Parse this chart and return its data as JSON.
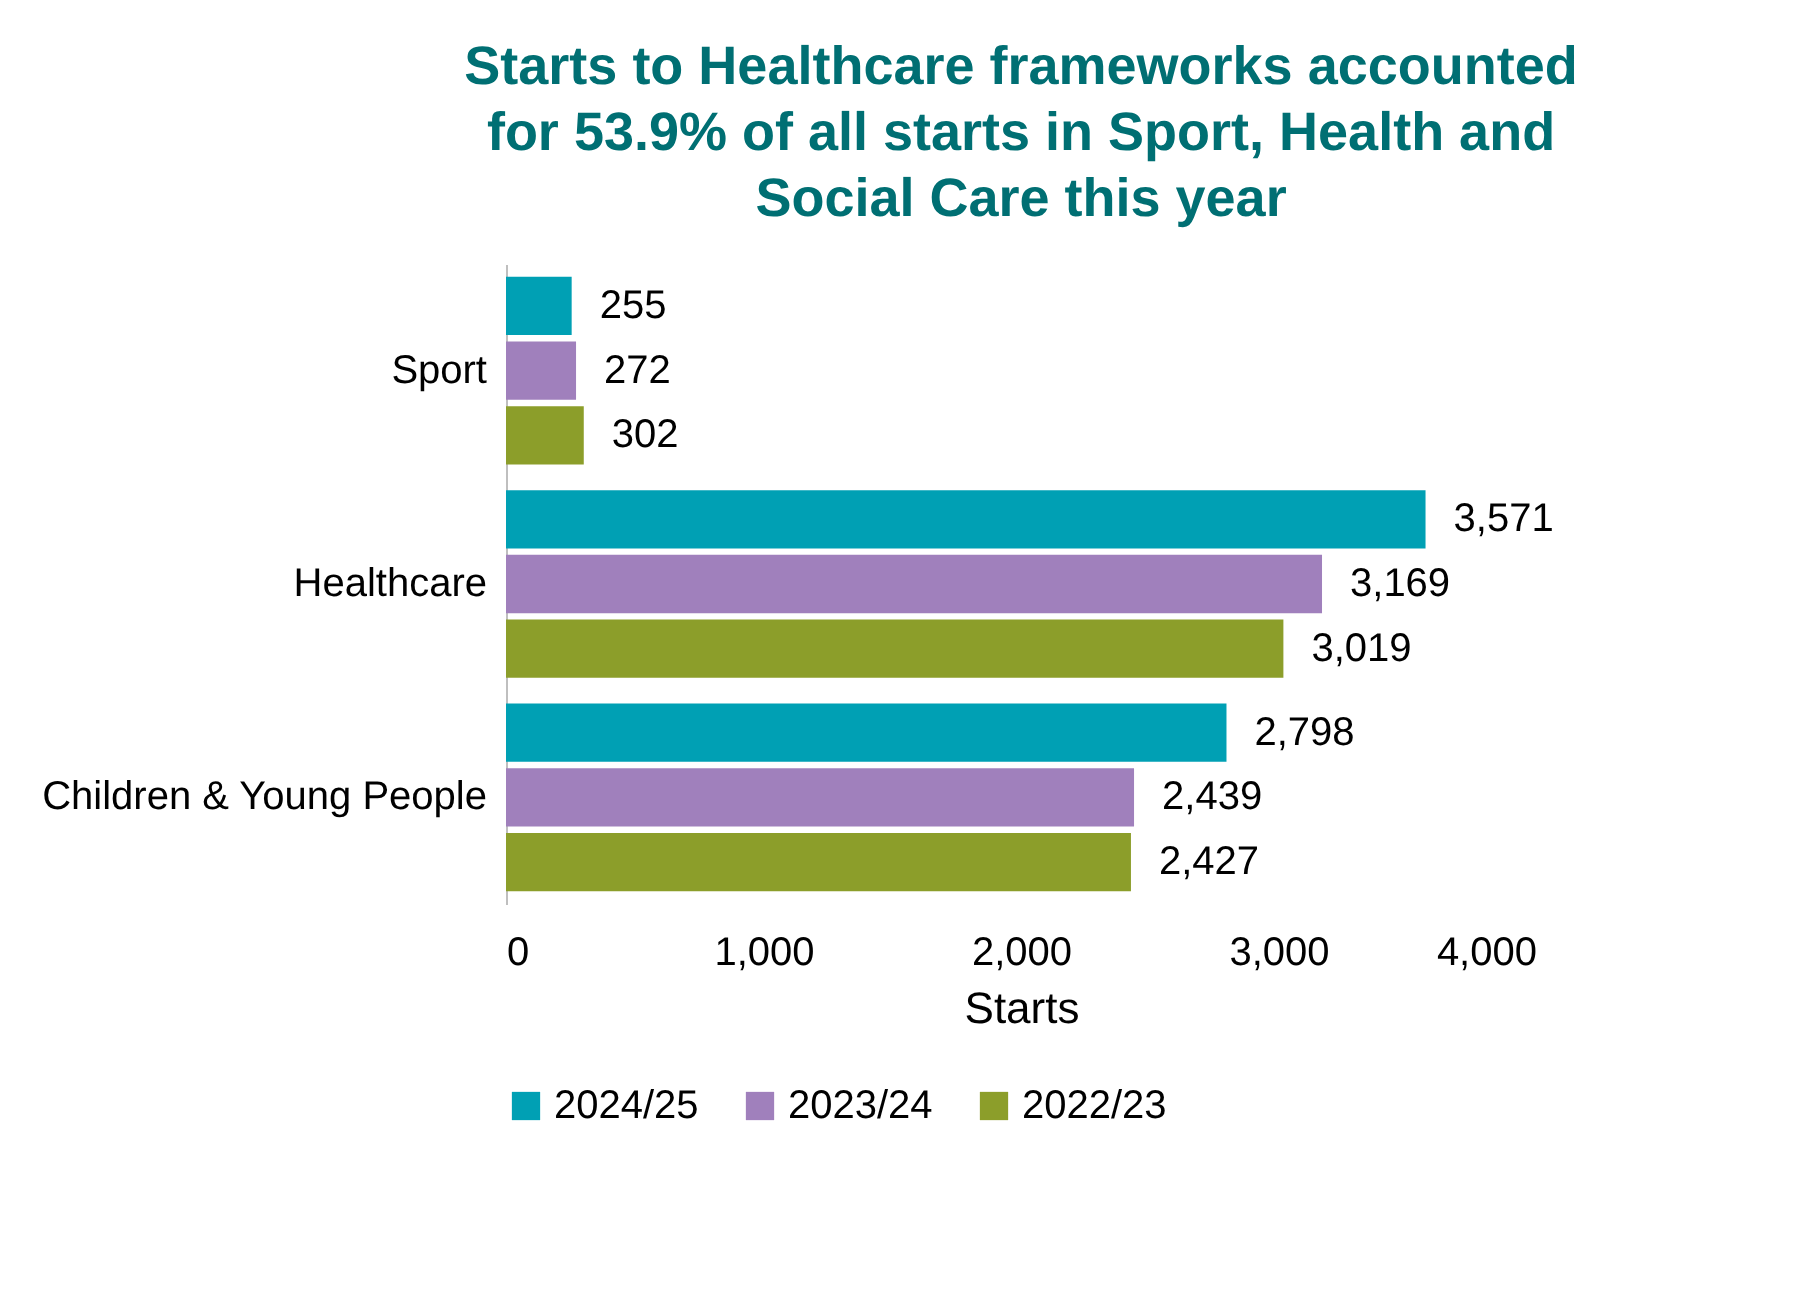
{
  "chart_data": {
    "type": "bar",
    "orientation": "horizontal",
    "title": "Starts to Healthcare frameworks accounted for 53.9% of all starts in Sport, Health and Social Care this year",
    "xlabel": "Starts",
    "categories": [
      "Sport",
      "Healthcare",
      "Children & Young People"
    ],
    "series": [
      {
        "name": "2024/25",
        "color": "#00a0b4",
        "values": [
          255,
          3571,
          2798
        ],
        "value_labels": [
          "255",
          "3,571",
          "2,798"
        ]
      },
      {
        "name": "2023/24",
        "color": "#a080bc",
        "values": [
          272,
          3169,
          2439
        ],
        "value_labels": [
          "272",
          "3,169",
          "2,439"
        ]
      },
      {
        "name": "2022/23",
        "color": "#8c9e2a",
        "values": [
          302,
          3019,
          2427
        ],
        "value_labels": [
          "302",
          "3,019",
          "2,427"
        ]
      }
    ],
    "xlim": [
      0,
      4000
    ],
    "xticks": [
      0,
      {
        "value": 1000,
        "label": "1,000"
      },
      {
        "value": 2000,
        "label": "2,000"
      },
      {
        "value": 3000,
        "label": "3,000"
      },
      {
        "value": 4000,
        "label": "4,000"
      }
    ],
    "grid": false,
    "legend": "bottom"
  }
}
